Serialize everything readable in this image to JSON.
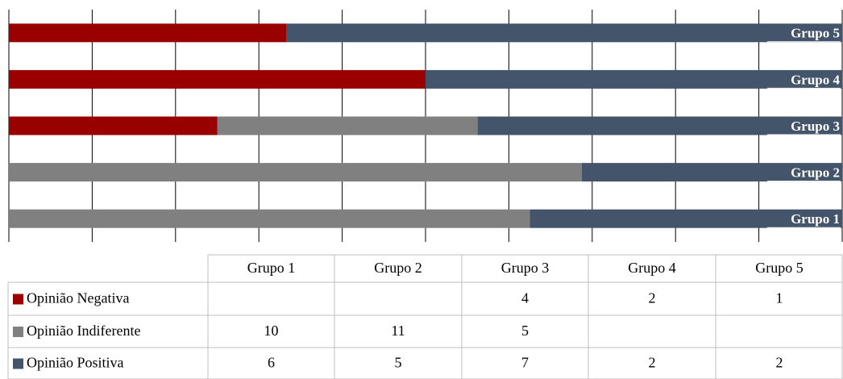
{
  "chart_data": {
    "type": "stacked_bar_100",
    "categories": [
      "Grupo 1",
      "Grupo 2",
      "Grupo 3",
      "Grupo 4",
      "Grupo 5"
    ],
    "series": [
      {
        "name": "Opinião Negativa",
        "color": "#990000",
        "values": [
          null,
          null,
          4,
          2,
          1
        ]
      },
      {
        "name": "Opinião Indiferente",
        "color": "#808080",
        "values": [
          10,
          11,
          5,
          null,
          null
        ]
      },
      {
        "name": "Opinião Positiva",
        "color": "#44546a",
        "values": [
          6,
          5,
          7,
          2,
          2
        ]
      }
    ],
    "xlim": [
      0,
      100
    ],
    "xticks": [
      0,
      10,
      20,
      30,
      40,
      50,
      60,
      70,
      80,
      90,
      100
    ],
    "grid": true
  }
}
